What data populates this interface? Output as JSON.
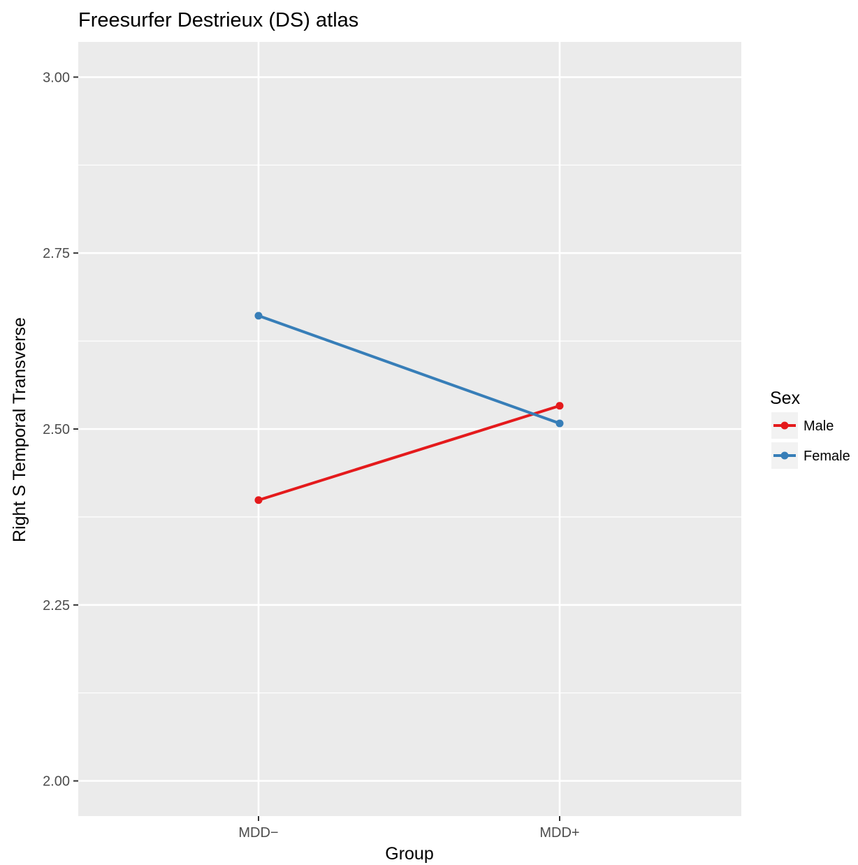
{
  "chart_data": {
    "type": "line",
    "title": "Freesurfer Destrieux (DS) atlas",
    "xlabel": "Group",
    "ylabel": "Right S Temporal Transverse",
    "categories": [
      "MDD−",
      "MDD+"
    ],
    "ylim": [
      1.95,
      3.05
    ],
    "yticks": [
      2.0,
      2.25,
      2.5,
      2.75,
      3.0
    ],
    "ytick_labels": [
      "2.00",
      "2.25",
      "2.50",
      "2.75",
      "3.00"
    ],
    "grid": true,
    "legend": {
      "title": "Sex",
      "placement": "right"
    },
    "series": [
      {
        "name": "Male",
        "color": "#e41a1c",
        "values": [
          2.399,
          2.533
        ]
      },
      {
        "name": "Female",
        "color": "#377eb8",
        "values": [
          2.661,
          2.508
        ]
      }
    ]
  }
}
